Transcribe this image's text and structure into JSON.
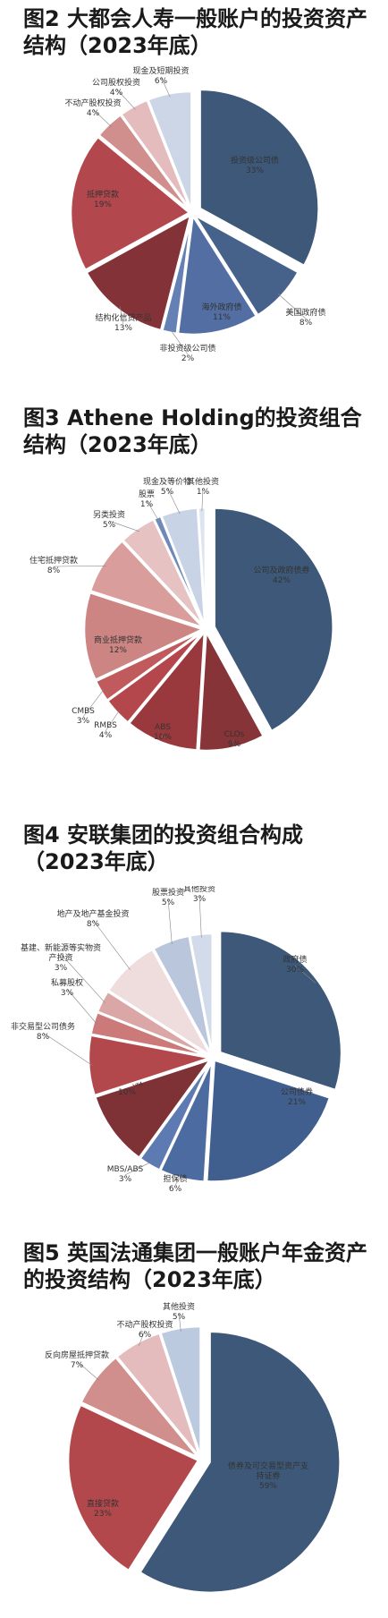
{
  "chart_data": [
    {
      "type": "pie",
      "title": "图2 大都会人寿一般账户的投资资产结构（2023年底）",
      "slices": [
        {
          "label": "投资级公司债",
          "value": 33,
          "value_label": "33%",
          "color": "#3d5878"
        },
        {
          "label": "美国政府债",
          "value": 8,
          "value_label": "8%",
          "color": "#47628a"
        },
        {
          "label": "海外政府债",
          "value": 11,
          "value_label": "11%",
          "color": "#526ea3"
        },
        {
          "label": "非投资级公司债",
          "value": 2,
          "value_label": "2%",
          "color": "#6580b5"
        },
        {
          "label": "结构化信贷产品",
          "value": 13,
          "value_label": "13%",
          "color": "#833338"
        },
        {
          "label": "抵押贷款",
          "value": 19,
          "value_label": "19%",
          "color": "#b2484d"
        },
        {
          "label": "不动产股权投资",
          "value": 4,
          "value_label": "4%",
          "color": "#d08f8c"
        },
        {
          "label": "公司股权投资",
          "value": 4,
          "value_label": "4%",
          "color": "#e4bcbd"
        },
        {
          "label": "现金及短期投资",
          "value": 6,
          "value_label": "6%",
          "color": "#ccd6e6"
        }
      ]
    },
    {
      "type": "pie",
      "title": "图3 Athene Holding的投资组合结构（2023年底）",
      "slices": [
        {
          "label": "公司及政府债券",
          "value": 42,
          "value_label": "42%",
          "color": "#3d5878"
        },
        {
          "label": "CLOs",
          "value": 9,
          "value_label": "9%",
          "color": "#863437"
        },
        {
          "label": "ABS",
          "value": 10,
          "value_label": "10%",
          "color": "#99393d"
        },
        {
          "label": "RMBS",
          "value": 4,
          "value_label": "4%",
          "color": "#b3474b"
        },
        {
          "label": "CMBS",
          "value": 3,
          "value_label": "3%",
          "color": "#c05a5c"
        },
        {
          "label": "商业抵押贷款",
          "value": 12,
          "value_label": "12%",
          "color": "#cc8583"
        },
        {
          "label": "住宅抵押贷款",
          "value": 8,
          "value_label": "8%",
          "color": "#d99e9c"
        },
        {
          "label": "另类投资",
          "value": 5,
          "value_label": "5%",
          "color": "#e6c2c2"
        },
        {
          "label": "股票",
          "value": 1,
          "value_label": "1%",
          "color": "#6f89b8"
        },
        {
          "label": "现金及等价物",
          "value": 5,
          "value_label": "5%",
          "color": "#c8d3e6"
        },
        {
          "label": "其他投资",
          "value": 1,
          "value_label": "1%",
          "color": "#dde4ef"
        }
      ]
    },
    {
      "type": "pie",
      "title": "图4 安联集团的投资组合构成（2023年底）",
      "slices": [
        {
          "label": "政府债",
          "value": 30,
          "value_label": "30%",
          "color": "#3d5878"
        },
        {
          "label": "公司债券",
          "value": 21,
          "value_label": "21%",
          "color": "#405f8e"
        },
        {
          "label": "担保债",
          "value": 6,
          "value_label": "6%",
          "color": "#4c6ba1"
        },
        {
          "label": "MBS/ABS",
          "value": 3,
          "value_label": "3%",
          "color": "#5e7ab2"
        },
        {
          "label": "抵押贷款",
          "value": 10,
          "value_label": "10%",
          "color": "#7e3236"
        },
        {
          "label": "非交易型公司债务",
          "value": 8,
          "value_label": "8%",
          "color": "#b3484c"
        },
        {
          "label": "私募股权",
          "value": 3,
          "value_label": "3%",
          "color": "#cc7a79"
        },
        {
          "label": "基建、新能源等实物资产投资",
          "value": 3,
          "value_label": "3%",
          "color": "#dba7a6"
        },
        {
          "label": "地产及地产基金投资",
          "value": 8,
          "value_label": "8%",
          "color": "#efdcdd"
        },
        {
          "label": "股票投资",
          "value": 5,
          "value_label": "5%",
          "color": "#b9c6dc"
        },
        {
          "label": "其他投资",
          "value": 3,
          "value_label": "3%",
          "color": "#d2dbe9"
        }
      ]
    },
    {
      "type": "pie",
      "title": "图5 英国法通集团一般账户年金资产的投资结构（2023年底）",
      "slices": [
        {
          "label": "债券及可交易型资产支持证券",
          "value": 59,
          "value_label": "59%",
          "color": "#3d5878"
        },
        {
          "label": "直接贷款",
          "value": 23,
          "value_label": "23%",
          "color": "#b3484c"
        },
        {
          "label": "反向房屋抵押贷款",
          "value": 7,
          "value_label": "7%",
          "color": "#d08f8c"
        },
        {
          "label": "不动产股权投资",
          "value": 6,
          "value_label": "6%",
          "color": "#e4bcbd"
        },
        {
          "label": "其他投资",
          "value": 5,
          "value_label": "5%",
          "color": "#bccadf"
        }
      ]
    }
  ]
}
